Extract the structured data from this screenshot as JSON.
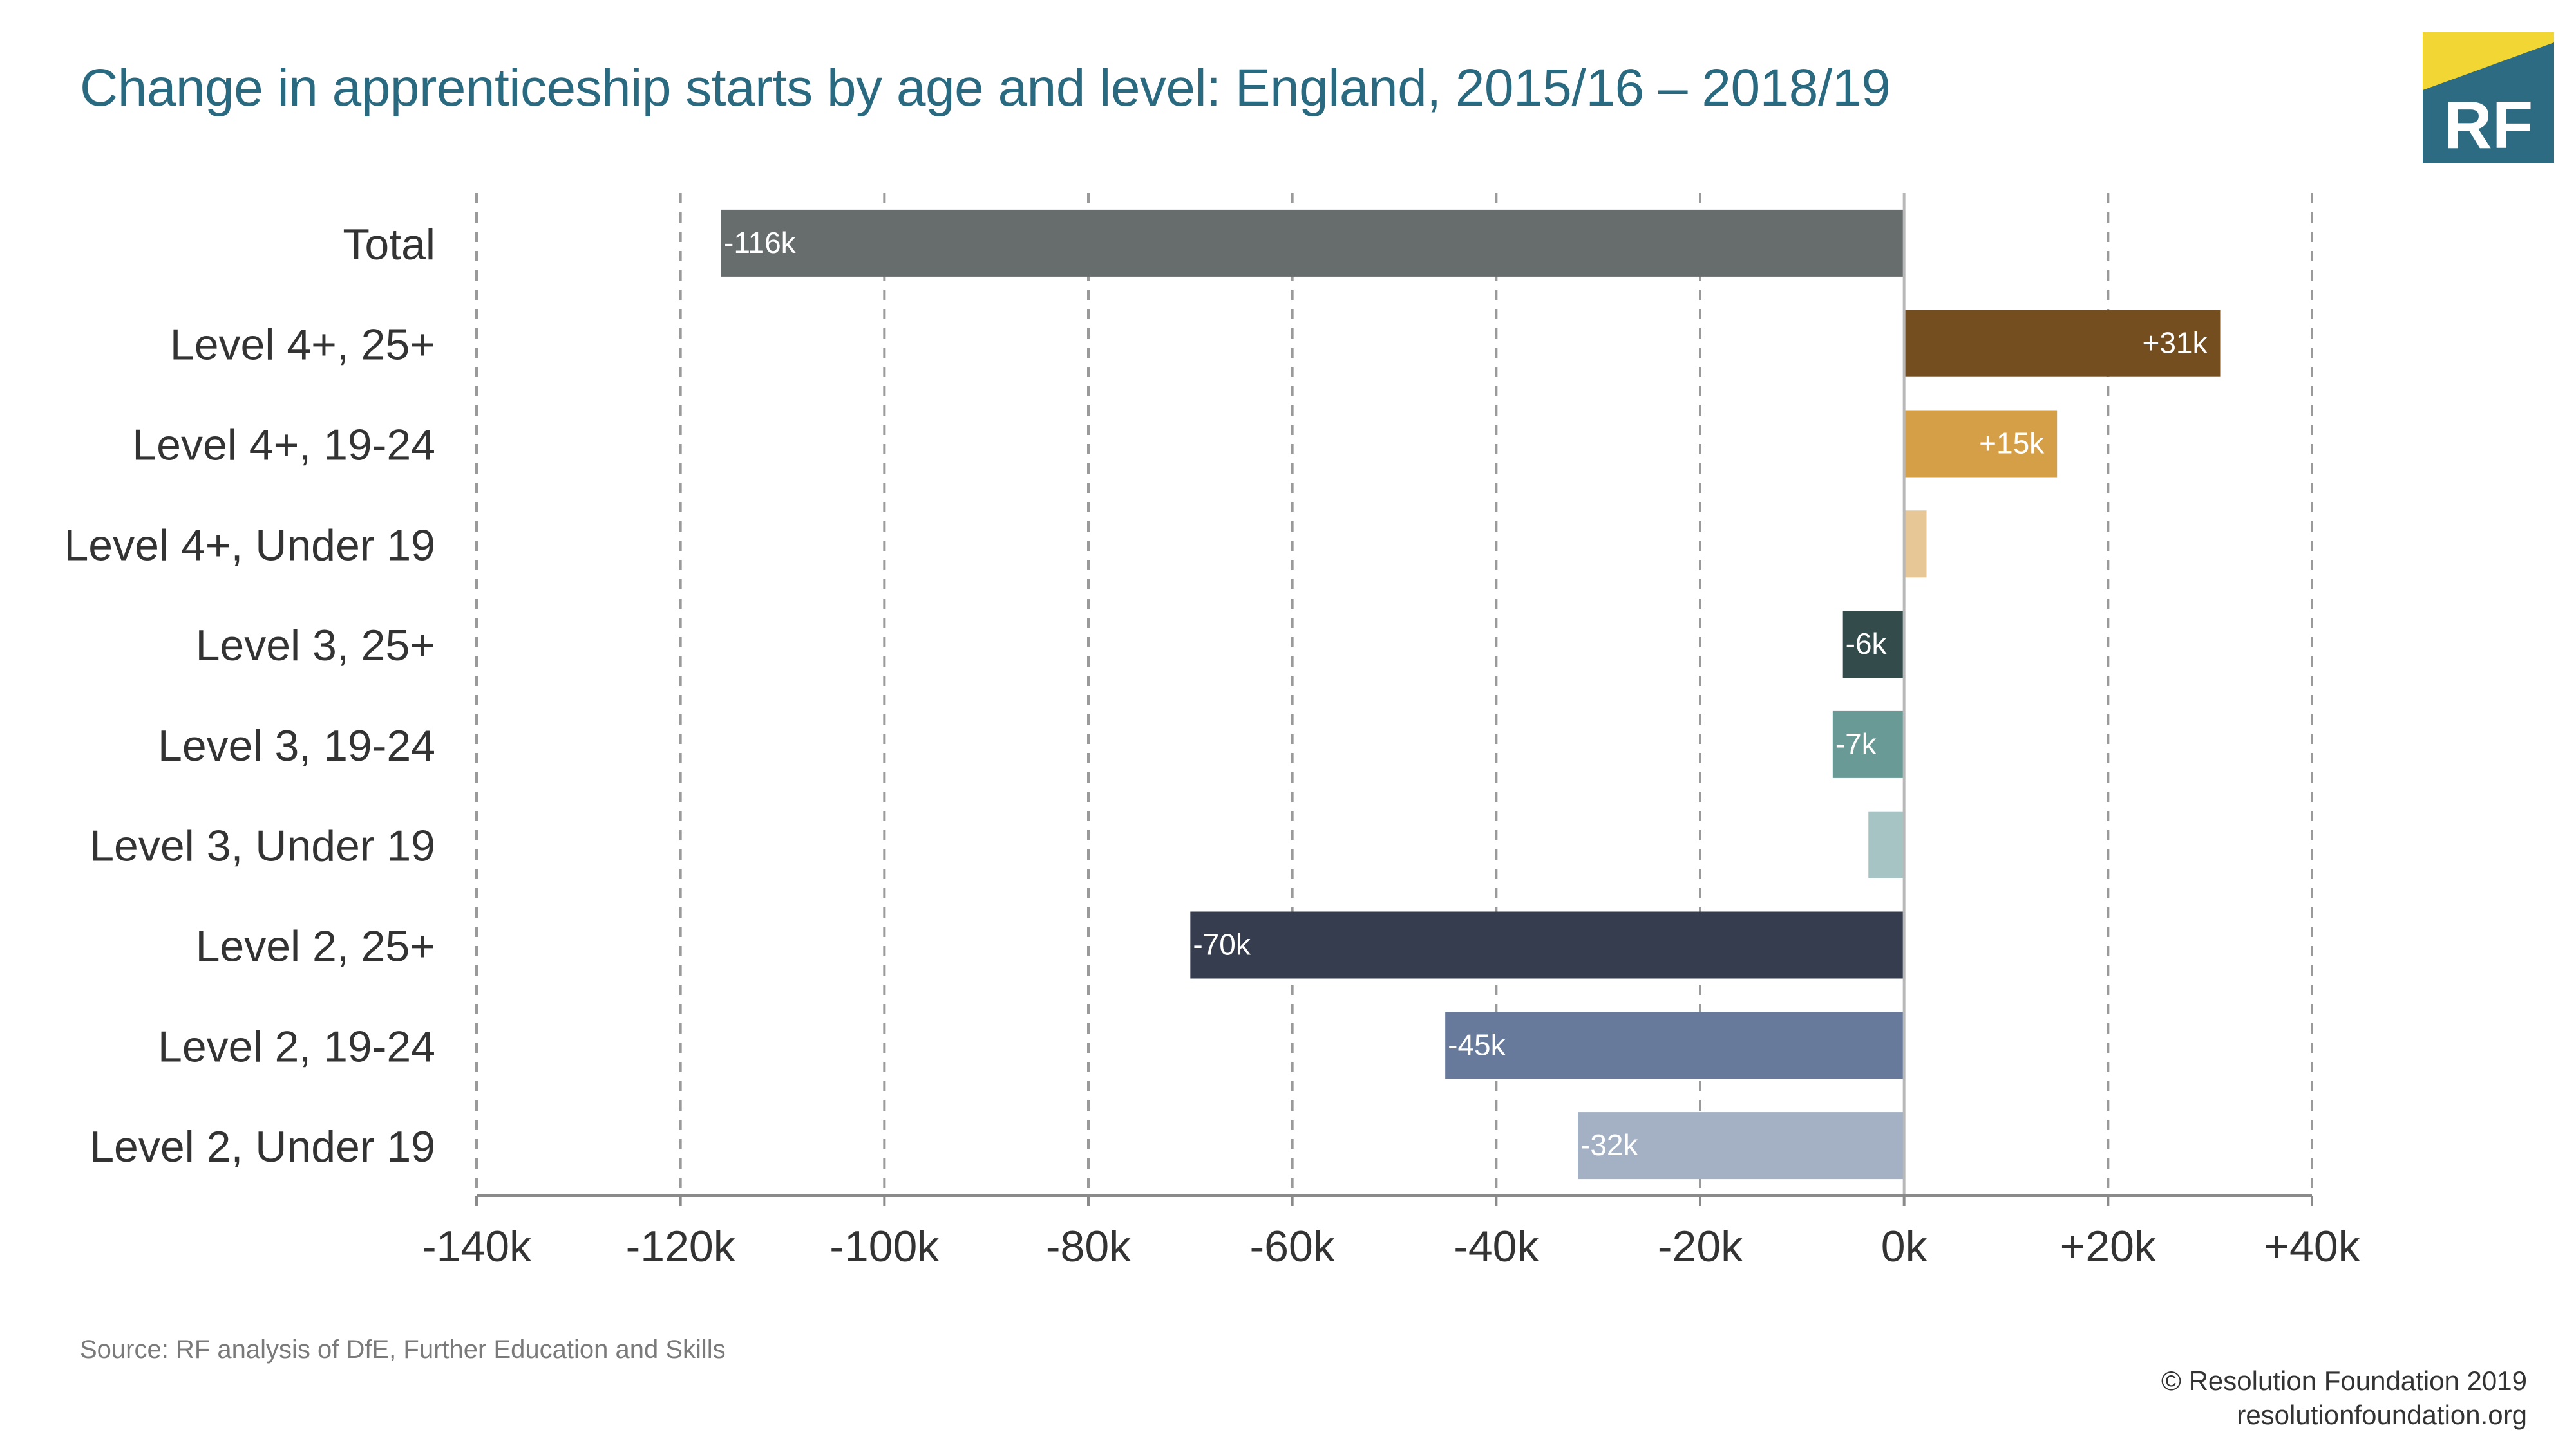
{
  "title": "Change in apprenticeship starts by age and level: England, 2015/16 – 2018/19",
  "logo": {
    "text": "RF",
    "colors": {
      "teal": "#2c6b82",
      "yellow": "#f2d633"
    }
  },
  "source": "Source: RF analysis of DfE, Further Education and Skills",
  "copyright": "© Resolution Foundation 2019",
  "website": "resolutionfoundation.org",
  "chart_data": {
    "type": "bar",
    "orientation": "horizontal",
    "title": "Change in apprenticeship starts by age and level: England, 2015/16 – 2018/19",
    "xlabel": "",
    "ylabel": "",
    "xlim": [
      -140,
      40
    ],
    "grid": true,
    "categories": [
      "Total",
      "Level 4+, 25+",
      "Level 4+, 19-24",
      "Level 4+, Under 19",
      "Level 3, 25+",
      "Level 3, 19-24",
      "Level 3, Under 19",
      "Level 2, 25+",
      "Level 2, 19-24",
      "Level 2, Under 19"
    ],
    "values": [
      -116,
      31,
      15,
      2.2,
      -6,
      -7,
      -3.5,
      -70,
      -45,
      -32
    ],
    "data_labels": [
      "-116k",
      "+31k",
      "+15k",
      "",
      "-6k",
      "-7k",
      "",
      "-70k",
      "-45k",
      "-32k"
    ],
    "colors": [
      "#676c6d",
      "#744e1f",
      "#d59f48",
      "#e7c795",
      "#344b4b",
      "#6a9a96",
      "#a6c4c3",
      "#353d4e",
      "#687a9b",
      "#a4b0c4"
    ],
    "x_ticks": [
      -140,
      -120,
      -100,
      -80,
      -60,
      -40,
      -20,
      0,
      20,
      40
    ],
    "x_tick_labels": [
      "-140k",
      "-120k",
      "-100k",
      "-80k",
      "-60k",
      "-40k",
      "-20k",
      "0k",
      "+20k",
      "+40k"
    ]
  }
}
